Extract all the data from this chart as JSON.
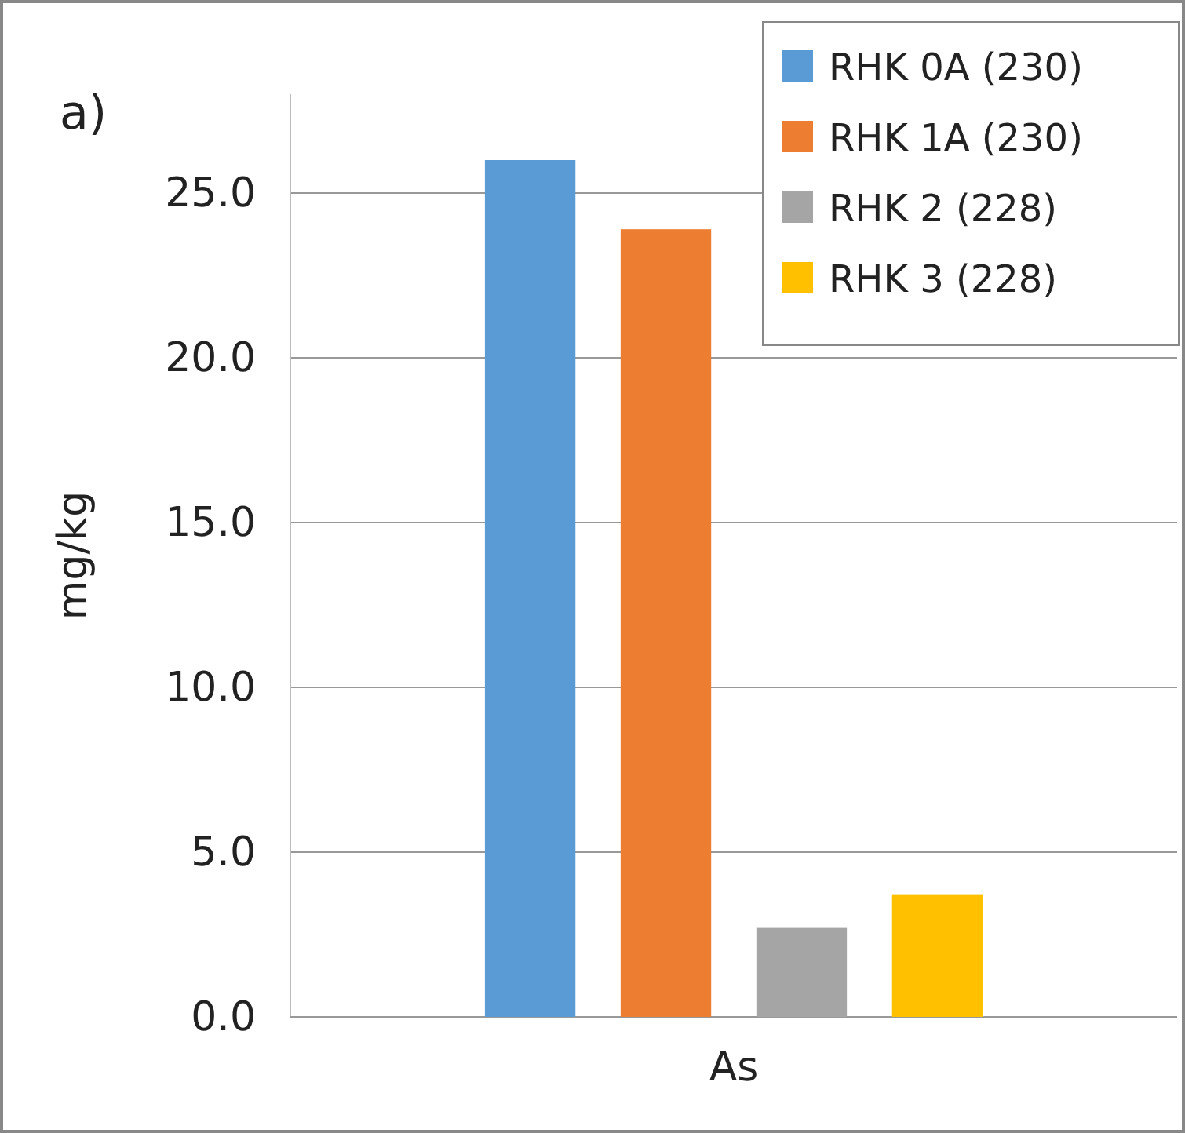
{
  "chart_data": {
    "type": "bar",
    "ylabel": "mg/kg",
    "categories": [
      "As"
    ],
    "annotations": [
      "a)"
    ],
    "series": [
      {
        "name": "RHK 0A (230)",
        "color": "#5b9bd5",
        "values": [
          26.0
        ]
      },
      {
        "name": "RHK 1A (230)",
        "color": "#ed7d31",
        "values": [
          23.9
        ]
      },
      {
        "name": "RHK 2 (228)",
        "color": "#a5a5a5",
        "values": [
          2.7
        ]
      },
      {
        "name": "RHK 3 (228)",
        "color": "#ffc000",
        "values": [
          3.7
        ]
      }
    ],
    "ylim": [
      0,
      28
    ],
    "yticks": [
      {
        "value": 0,
        "label": "0.0"
      },
      {
        "value": 5,
        "label": "5.0"
      },
      {
        "value": 10,
        "label": "10.0"
      },
      {
        "value": 15,
        "label": "15.0"
      },
      {
        "value": 20,
        "label": "20.0"
      },
      {
        "value": 25,
        "label": "25.0"
      }
    ],
    "grid": "y",
    "legend": "top right"
  }
}
